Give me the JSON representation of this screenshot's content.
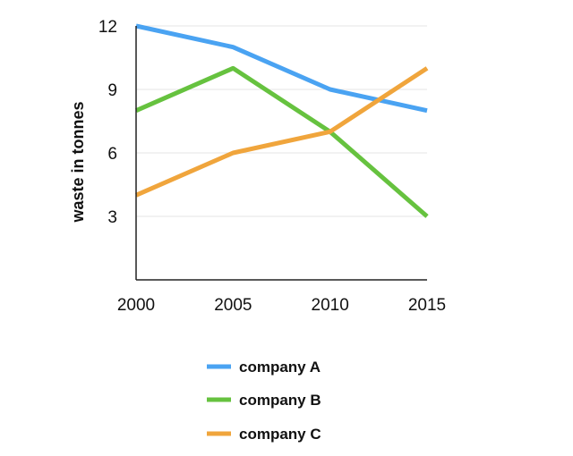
{
  "chart_data": {
    "type": "line",
    "title": "",
    "xlabel": "",
    "ylabel": "waste in tonnes",
    "categories": [
      "2000",
      "2005",
      "2010",
      "2015"
    ],
    "yticks": [
      3,
      6,
      9,
      12
    ],
    "ylim": [
      0,
      12
    ],
    "grid": true,
    "legend_position": "bottom",
    "series": [
      {
        "name": "company A",
        "color": "#4aa3f2",
        "values": [
          12,
          11,
          9,
          8
        ]
      },
      {
        "name": "company B",
        "color": "#66c23f",
        "values": [
          8,
          10,
          7,
          3
        ]
      },
      {
        "name": "company C",
        "color": "#f0a53c",
        "values": [
          4,
          6,
          7,
          10
        ]
      }
    ]
  }
}
